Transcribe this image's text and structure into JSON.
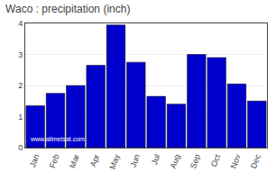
{
  "chart_data": {
    "type": "bar",
    "title": "Waco : precipitation (inch)",
    "categories": [
      "Jan",
      "Feb",
      "Mar",
      "Apr",
      "May",
      "Jun",
      "Jul",
      "Aug",
      "Sep",
      "Oct",
      "Nov",
      "Dec"
    ],
    "values": [
      1.35,
      1.75,
      2.0,
      2.65,
      3.95,
      2.75,
      1.65,
      1.4,
      3.0,
      2.9,
      2.05,
      1.5
    ],
    "color": "#0000CC",
    "ylim": [
      0,
      4
    ],
    "yticks": [
      0,
      1,
      2,
      3,
      4
    ],
    "grid": true,
    "annotations": [
      "www.allmetsat.com"
    ]
  }
}
